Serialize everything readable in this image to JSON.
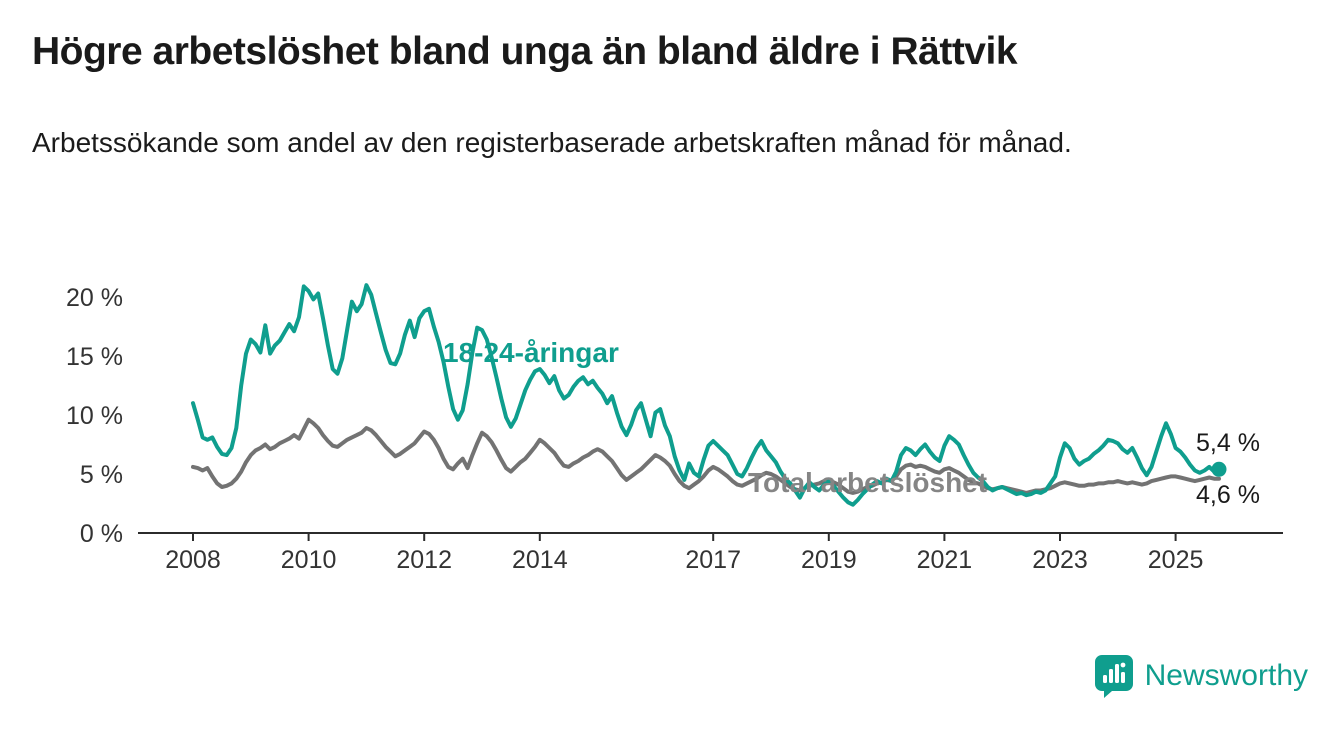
{
  "header": {
    "title": "Högre arbetslöshet bland unga än bland äldre i Rättvik",
    "subtitle": "Arbetssökande som andel av den registerbaserade arbetskraften månad för månad."
  },
  "colors": {
    "teal": "#0f9e8e",
    "gray": "#737373",
    "label_gray": "#858585",
    "axis": "#2b2b2b",
    "tick_text": "#333333",
    "value_text": "#1a1a1a"
  },
  "chart_data": {
    "type": "line",
    "title": "Högre arbetslöshet bland unga än bland äldre i Rättvik",
    "subtitle": "Arbetssökande som andel av den registerbaserade arbetskraften månad för månad.",
    "unit": "%",
    "start_year": 2008,
    "start_month": 1,
    "frequency": "monthly",
    "ylim": [
      0,
      21.5
    ],
    "grid": false,
    "legend_position": "inline-labels",
    "y_ticks": [
      {
        "value": 20,
        "label": "20 %"
      },
      {
        "value": 15,
        "label": "15 %"
      },
      {
        "value": 10,
        "label": "10 %"
      },
      {
        "value": 5,
        "label": "5 %"
      },
      {
        "value": 0,
        "label": "0 %"
      }
    ],
    "x_ticks": [
      2008,
      2010,
      2012,
      2014,
      2017,
      2019,
      2021,
      2023,
      2025
    ],
    "series": [
      {
        "name": "18-24-åringar",
        "color": "#0f9e8e",
        "last_value_label": "5,4 %",
        "values": [
          11.0,
          9.6,
          8.1,
          7.9,
          8.1,
          7.3,
          6.7,
          6.6,
          7.2,
          8.9,
          12.5,
          15.2,
          16.4,
          16.0,
          15.3,
          17.6,
          15.2,
          15.9,
          16.3,
          17.0,
          17.7,
          17.1,
          18.3,
          20.9,
          20.5,
          19.8,
          20.3,
          18.2,
          15.9,
          13.9,
          13.5,
          14.8,
          17.2,
          19.6,
          18.8,
          19.4,
          21.0,
          20.2,
          18.6,
          17.0,
          15.5,
          14.4,
          14.3,
          15.2,
          16.8,
          18.0,
          16.6,
          18.2,
          18.8,
          19.0,
          17.5,
          16.2,
          14.5,
          12.4,
          10.5,
          9.6,
          10.4,
          12.6,
          15.3,
          17.4,
          17.2,
          16.4,
          14.9,
          13.2,
          11.4,
          9.8,
          9.0,
          9.7,
          10.9,
          12.1,
          13.0,
          13.7,
          13.9,
          13.4,
          12.7,
          13.3,
          12.1,
          11.4,
          11.7,
          12.4,
          12.9,
          13.2,
          12.6,
          12.9,
          12.3,
          11.8,
          11.0,
          11.6,
          10.2,
          9.0,
          8.3,
          9.2,
          10.4,
          11.0,
          9.6,
          8.2,
          10.2,
          10.5,
          9.1,
          8.2,
          6.5,
          5.3,
          4.5,
          5.9,
          5.1,
          4.8,
          6.2,
          7.4,
          7.8,
          7.4,
          7.0,
          6.6,
          5.8,
          5.0,
          4.8,
          5.5,
          6.4,
          7.2,
          7.8,
          7.0,
          6.5,
          6.0,
          5.2,
          4.6,
          4.2,
          3.6,
          3.0,
          3.8,
          4.3,
          3.9,
          3.6,
          4.1,
          4.4,
          4.0,
          3.5,
          3.0,
          2.6,
          2.4,
          2.8,
          3.3,
          3.7,
          4.1,
          4.4,
          4.2,
          4.6,
          4.4,
          5.2,
          6.6,
          7.2,
          7.0,
          6.6,
          7.1,
          7.5,
          6.9,
          6.4,
          6.1,
          7.4,
          8.2,
          7.9,
          7.5,
          6.6,
          5.8,
          5.1,
          4.7,
          4.4,
          3.9,
          3.6,
          3.8,
          3.9,
          3.7,
          3.5,
          3.3,
          3.4,
          3.2,
          3.3,
          3.5,
          3.4,
          3.6,
          4.2,
          4.8,
          6.4,
          7.6,
          7.2,
          6.3,
          5.8,
          6.1,
          6.3,
          6.7,
          7.0,
          7.4,
          7.9,
          7.8,
          7.6,
          7.1,
          6.8,
          7.2,
          6.4,
          5.5,
          4.9,
          5.6,
          6.9,
          8.2,
          9.3,
          8.4,
          7.2,
          6.9,
          6.4,
          5.8,
          5.3,
          5.1,
          5.3,
          5.6,
          5.2,
          5.4
        ]
      },
      {
        "name": "Total arbetslöshet",
        "color": "#737373",
        "last_value_label": "4,6 %",
        "values": [
          5.6,
          5.5,
          5.3,
          5.5,
          4.8,
          4.2,
          3.9,
          4.0,
          4.2,
          4.6,
          5.2,
          6.0,
          6.6,
          7.0,
          7.2,
          7.5,
          7.1,
          7.3,
          7.6,
          7.8,
          8.0,
          8.3,
          8.0,
          8.8,
          9.6,
          9.3,
          8.9,
          8.3,
          7.8,
          7.4,
          7.3,
          7.6,
          7.9,
          8.1,
          8.3,
          8.5,
          8.9,
          8.7,
          8.3,
          7.8,
          7.3,
          6.9,
          6.5,
          6.7,
          7.0,
          7.3,
          7.6,
          8.1,
          8.6,
          8.4,
          7.9,
          7.2,
          6.3,
          5.6,
          5.4,
          5.9,
          6.3,
          5.5,
          6.6,
          7.6,
          8.5,
          8.2,
          7.7,
          7.0,
          6.2,
          5.5,
          5.2,
          5.6,
          6.0,
          6.3,
          6.8,
          7.3,
          7.9,
          7.6,
          7.2,
          6.8,
          6.2,
          5.7,
          5.6,
          5.9,
          6.1,
          6.4,
          6.6,
          6.9,
          7.1,
          6.9,
          6.5,
          6.1,
          5.5,
          4.9,
          4.5,
          4.8,
          5.1,
          5.4,
          5.8,
          6.2,
          6.6,
          6.4,
          6.1,
          5.7,
          5.0,
          4.4,
          4.0,
          3.8,
          4.1,
          4.4,
          4.8,
          5.3,
          5.6,
          5.4,
          5.1,
          4.8,
          4.4,
          4.1,
          4.0,
          4.2,
          4.4,
          4.6,
          4.9,
          5.1,
          5.0,
          4.8,
          4.5,
          4.2,
          3.9,
          3.7,
          3.6,
          3.8,
          4.0,
          4.1,
          4.2,
          4.4,
          4.5,
          4.3,
          4.1,
          3.8,
          3.5,
          3.4,
          3.5,
          3.7,
          3.9,
          4.0,
          4.2,
          4.3,
          4.5,
          4.4,
          4.8,
          5.4,
          5.7,
          5.8,
          5.6,
          5.7,
          5.6,
          5.4,
          5.2,
          5.1,
          5.4,
          5.5,
          5.3,
          5.1,
          4.8,
          4.5,
          4.3,
          4.2,
          4.0,
          3.8,
          3.7,
          3.8,
          3.9,
          3.8,
          3.7,
          3.6,
          3.5,
          3.4,
          3.5,
          3.6,
          3.6,
          3.7,
          3.8,
          4.0,
          4.2,
          4.3,
          4.2,
          4.1,
          4.0,
          4.0,
          4.1,
          4.1,
          4.2,
          4.2,
          4.3,
          4.3,
          4.4,
          4.3,
          4.2,
          4.3,
          4.2,
          4.1,
          4.2,
          4.4,
          4.5,
          4.6,
          4.7,
          4.8,
          4.8,
          4.7,
          4.6,
          4.5,
          4.4,
          4.5,
          4.6,
          4.7,
          4.6,
          4.6
        ]
      }
    ],
    "end_labels": {
      "youth": "5,4 %",
      "total": "4,6 %"
    }
  },
  "branding": {
    "name": "Newsworthy"
  }
}
